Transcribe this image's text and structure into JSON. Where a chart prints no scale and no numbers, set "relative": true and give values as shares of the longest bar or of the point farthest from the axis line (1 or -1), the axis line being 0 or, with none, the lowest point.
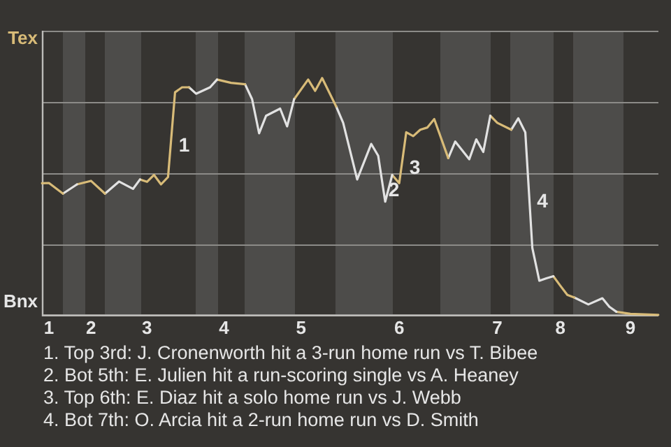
{
  "chart_data": {
    "type": "line",
    "relative": true,
    "categories": [
      null,
      "1",
      null,
      null,
      null,
      null,
      null,
      "2",
      null,
      null,
      null,
      null,
      null,
      null,
      null,
      "3",
      null,
      null,
      null,
      null,
      null,
      null,
      null,
      null,
      null,
      null,
      "4",
      null,
      null,
      null,
      null,
      null,
      null,
      null,
      null,
      null,
      null,
      "5",
      null,
      null,
      null,
      null,
      null,
      null,
      null,
      null,
      null,
      null,
      null,
      null,
      null,
      "6",
      null,
      null,
      null,
      null,
      null,
      null,
      null,
      null,
      null,
      null,
      null,
      null,
      null,
      "7",
      null,
      null,
      null,
      null,
      null,
      null,
      null,
      null,
      "8",
      null,
      null,
      null,
      null,
      null,
      null,
      null,
      null,
      null,
      "9",
      null,
      null,
      null,
      null
    ],
    "series": [
      {
        "color": "#d8bb78",
        "values": [
          0.556,
          0.557,
          null,
          0.512,
          null,
          null,
          null,
          null,
          null,
          null,
          null,
          null,
          null,
          null,
          null,
          null,
          null,
          null,
          null,
          null,
          null,
          null,
          null,
          null,
          null,
          null,
          null,
          null,
          null,
          null,
          null,
          null,
          null,
          null,
          null,
          null,
          null,
          null,
          null,
          null,
          null,
          null,
          null,
          null,
          null,
          null,
          null,
          null,
          null,
          null,
          null,
          null,
          null,
          null,
          null,
          null,
          null,
          null,
          null,
          null,
          null,
          null,
          null,
          null,
          null,
          null,
          null,
          null,
          null,
          null,
          null,
          null,
          null,
          null,
          null,
          null,
          null,
          null,
          null,
          null,
          null,
          null,
          null,
          null,
          null,
          null,
          null,
          null,
          null
        ]
      },
      {
        "color": "#e2e2e2",
        "values": [
          null,
          null,
          null,
          0.512,
          null,
          0.551,
          null,
          null,
          null,
          null,
          null,
          null,
          null,
          null,
          null,
          null,
          null,
          null,
          null,
          null,
          null,
          null,
          null,
          null,
          null,
          null,
          null,
          null,
          null,
          null,
          null,
          null,
          null,
          null,
          null,
          null,
          null,
          null,
          null,
          null,
          null,
          null,
          null,
          null,
          null,
          null,
          null,
          null,
          null,
          null,
          null,
          null,
          null,
          null,
          null,
          null,
          null,
          null,
          null,
          null,
          null,
          null,
          null,
          null,
          null,
          null,
          null,
          null,
          null,
          null,
          null,
          null,
          null,
          null,
          null,
          null,
          null,
          null,
          null,
          null,
          null,
          null,
          null,
          null,
          null,
          null,
          null,
          null,
          null
        ]
      },
      {
        "color": "#d8bb78",
        "values": [
          null,
          null,
          null,
          null,
          null,
          0.551,
          null,
          0.566,
          null,
          0.512,
          null,
          null,
          null,
          null,
          null,
          null,
          null,
          null,
          null,
          null,
          null,
          null,
          null,
          null,
          null,
          null,
          null,
          null,
          null,
          null,
          null,
          null,
          null,
          null,
          null,
          null,
          null,
          null,
          null,
          null,
          null,
          null,
          null,
          null,
          null,
          null,
          null,
          null,
          null,
          null,
          null,
          null,
          null,
          null,
          null,
          null,
          null,
          null,
          null,
          null,
          null,
          null,
          null,
          null,
          null,
          null,
          null,
          null,
          null,
          null,
          null,
          null,
          null,
          null,
          null,
          null,
          null,
          null,
          null,
          null,
          null,
          null,
          null,
          null,
          null,
          null,
          null,
          null,
          null
        ]
      },
      {
        "color": "#e2e2e2",
        "values": [
          null,
          null,
          null,
          null,
          null,
          null,
          null,
          null,
          null,
          0.512,
          null,
          0.563,
          null,
          0.532,
          0.572,
          null,
          null,
          null,
          null,
          null,
          null,
          null,
          null,
          null,
          null,
          null,
          null,
          null,
          null,
          null,
          null,
          null,
          null,
          null,
          null,
          null,
          null,
          null,
          null,
          null,
          null,
          null,
          null,
          null,
          null,
          null,
          null,
          null,
          null,
          null,
          null,
          null,
          null,
          null,
          null,
          null,
          null,
          null,
          null,
          null,
          null,
          null,
          null,
          null,
          null,
          null,
          null,
          null,
          null,
          null,
          null,
          null,
          null,
          null,
          null,
          null,
          null,
          null,
          null,
          null,
          null,
          null,
          null,
          null,
          null,
          null,
          null,
          null,
          null
        ]
      },
      {
        "color": "#d8bb78",
        "values": [
          null,
          null,
          null,
          null,
          null,
          null,
          null,
          null,
          null,
          null,
          null,
          null,
          null,
          null,
          0.572,
          0.562,
          0.591,
          0.551,
          0.582,
          0.94,
          0.961,
          0.961,
          null,
          null,
          null,
          null,
          null,
          null,
          null,
          null,
          null,
          null,
          null,
          null,
          null,
          null,
          null,
          null,
          null,
          null,
          null,
          null,
          null,
          null,
          null,
          null,
          null,
          null,
          null,
          null,
          null,
          null,
          null,
          null,
          null,
          null,
          null,
          null,
          null,
          null,
          null,
          null,
          null,
          null,
          null,
          null,
          null,
          null,
          null,
          null,
          null,
          null,
          null,
          null,
          null,
          null,
          null,
          null,
          null,
          null,
          null,
          null,
          null,
          null,
          null,
          null,
          null,
          null,
          null
        ]
      },
      {
        "color": "#e2e2e2",
        "values": [
          null,
          null,
          null,
          null,
          null,
          null,
          null,
          null,
          null,
          null,
          null,
          null,
          null,
          null,
          null,
          null,
          null,
          null,
          null,
          null,
          null,
          0.961,
          0.934,
          null,
          0.961,
          0.994,
          null,
          null,
          null,
          null,
          null,
          null,
          null,
          null,
          null,
          null,
          null,
          null,
          null,
          null,
          null,
          null,
          null,
          null,
          null,
          null,
          null,
          null,
          null,
          null,
          null,
          null,
          null,
          null,
          null,
          null,
          null,
          null,
          null,
          null,
          null,
          null,
          null,
          null,
          null,
          null,
          null,
          null,
          null,
          null,
          null,
          null,
          null,
          null,
          null,
          null,
          null,
          null,
          null,
          null,
          null,
          null,
          null,
          null,
          null,
          null,
          null,
          null,
          null
        ]
      },
      {
        "color": "#d8bb78",
        "values": [
          null,
          null,
          null,
          null,
          null,
          null,
          null,
          null,
          null,
          null,
          null,
          null,
          null,
          null,
          null,
          null,
          null,
          null,
          null,
          null,
          null,
          null,
          null,
          null,
          null,
          0.994,
          null,
          0.98,
          null,
          0.974,
          null,
          null,
          null,
          null,
          null,
          null,
          null,
          null,
          null,
          null,
          null,
          null,
          null,
          null,
          null,
          null,
          null,
          null,
          null,
          null,
          null,
          null,
          null,
          null,
          null,
          null,
          null,
          null,
          null,
          null,
          null,
          null,
          null,
          null,
          null,
          null,
          null,
          null,
          null,
          null,
          null,
          null,
          null,
          null,
          null,
          null,
          null,
          null,
          null,
          null,
          null,
          null,
          null,
          null,
          null,
          null,
          null,
          null,
          null
        ]
      },
      {
        "color": "#e2e2e2",
        "values": [
          null,
          null,
          null,
          null,
          null,
          null,
          null,
          null,
          null,
          null,
          null,
          null,
          null,
          null,
          null,
          null,
          null,
          null,
          null,
          null,
          null,
          null,
          null,
          null,
          null,
          null,
          null,
          null,
          null,
          0.974,
          0.911,
          0.767,
          0.841,
          null,
          0.871,
          0.796,
          0.911,
          null,
          null,
          null,
          null,
          null,
          null,
          null,
          null,
          null,
          null,
          null,
          null,
          null,
          null,
          null,
          null,
          null,
          null,
          null,
          null,
          null,
          null,
          null,
          null,
          null,
          null,
          null,
          null,
          null,
          null,
          null,
          null,
          null,
          null,
          null,
          null,
          null,
          null,
          null,
          null,
          null,
          null,
          null,
          null,
          null,
          null,
          null,
          null,
          null,
          null,
          null,
          null
        ]
      },
      {
        "color": "#d8bb78",
        "values": [
          null,
          null,
          null,
          null,
          null,
          null,
          null,
          null,
          null,
          null,
          null,
          null,
          null,
          null,
          null,
          null,
          null,
          null,
          null,
          null,
          null,
          null,
          null,
          null,
          null,
          null,
          null,
          null,
          null,
          null,
          null,
          null,
          null,
          null,
          null,
          null,
          0.911,
          null,
          0.994,
          0.946,
          1,
          null,
          0.88,
          null,
          null,
          null,
          null,
          null,
          null,
          null,
          null,
          null,
          null,
          null,
          null,
          null,
          null,
          null,
          null,
          null,
          null,
          null,
          null,
          null,
          null,
          null,
          null,
          null,
          null,
          null,
          null,
          null,
          null,
          null,
          null,
          null,
          null,
          null,
          null,
          null,
          null,
          null,
          null,
          null,
          null,
          null,
          null,
          null,
          null
        ]
      },
      {
        "color": "#e2e2e2",
        "values": [
          null,
          null,
          null,
          null,
          null,
          null,
          null,
          null,
          null,
          null,
          null,
          null,
          null,
          null,
          null,
          null,
          null,
          null,
          null,
          null,
          null,
          null,
          null,
          null,
          null,
          null,
          null,
          null,
          null,
          null,
          null,
          null,
          null,
          null,
          null,
          null,
          null,
          null,
          null,
          null,
          null,
          null,
          0.88,
          0.811,
          null,
          0.572,
          null,
          0.722,
          0.672,
          0.478,
          0.591,
          null,
          null,
          null,
          null,
          null,
          null,
          null,
          null,
          null,
          null,
          null,
          null,
          null,
          null,
          null,
          null,
          null,
          null,
          null,
          null,
          null,
          null,
          null,
          null,
          null,
          null,
          null,
          null,
          null,
          null,
          null,
          null,
          null,
          null,
          null,
          null,
          null,
          null
        ]
      },
      {
        "color": "#d8bb78",
        "values": [
          null,
          null,
          null,
          null,
          null,
          null,
          null,
          null,
          null,
          null,
          null,
          null,
          null,
          null,
          null,
          null,
          null,
          null,
          null,
          null,
          null,
          null,
          null,
          null,
          null,
          null,
          null,
          null,
          null,
          null,
          null,
          null,
          null,
          null,
          null,
          null,
          null,
          null,
          null,
          null,
          null,
          null,
          null,
          null,
          null,
          null,
          null,
          null,
          null,
          null,
          0.591,
          0.556,
          0.771,
          0.755,
          0.782,
          0.791,
          0.827,
          null,
          0.662,
          null,
          null,
          null,
          null,
          null,
          null,
          null,
          null,
          null,
          null,
          null,
          null,
          null,
          null,
          null,
          null,
          null,
          null,
          null,
          null,
          null,
          null,
          null,
          null,
          null,
          null,
          null,
          null,
          null,
          null
        ]
      },
      {
        "color": "#e2e2e2",
        "values": [
          null,
          null,
          null,
          null,
          null,
          null,
          null,
          null,
          null,
          null,
          null,
          null,
          null,
          null,
          null,
          null,
          null,
          null,
          null,
          null,
          null,
          null,
          null,
          null,
          null,
          null,
          null,
          null,
          null,
          null,
          null,
          null,
          null,
          null,
          null,
          null,
          null,
          null,
          null,
          null,
          null,
          null,
          null,
          null,
          null,
          null,
          null,
          null,
          null,
          null,
          null,
          null,
          null,
          null,
          null,
          null,
          null,
          null,
          0.662,
          0.732,
          null,
          0.657,
          0.741,
          0.688,
          0.841,
          null,
          null,
          null,
          null,
          null,
          null,
          null,
          null,
          null,
          null,
          null,
          null,
          null,
          null,
          null,
          null,
          null,
          null,
          null,
          null,
          null,
          null,
          null,
          null
        ]
      },
      {
        "color": "#d8bb78",
        "values": [
          null,
          null,
          null,
          null,
          null,
          null,
          null,
          null,
          null,
          null,
          null,
          null,
          null,
          null,
          null,
          null,
          null,
          null,
          null,
          null,
          null,
          null,
          null,
          null,
          null,
          null,
          null,
          null,
          null,
          null,
          null,
          null,
          null,
          null,
          null,
          null,
          null,
          null,
          null,
          null,
          null,
          null,
          null,
          null,
          null,
          null,
          null,
          null,
          null,
          null,
          null,
          null,
          null,
          null,
          null,
          null,
          null,
          null,
          null,
          null,
          null,
          null,
          null,
          null,
          0.841,
          0.811,
          null,
          0.782,
          null,
          null,
          null,
          null,
          null,
          null,
          null,
          null,
          null,
          null,
          null,
          null,
          null,
          null,
          null,
          null,
          null,
          null,
          null,
          null,
          null
        ]
      },
      {
        "color": "#e2e2e2",
        "values": [
          null,
          null,
          null,
          null,
          null,
          null,
          null,
          null,
          null,
          null,
          null,
          null,
          null,
          null,
          null,
          null,
          null,
          null,
          null,
          null,
          null,
          null,
          null,
          null,
          null,
          null,
          null,
          null,
          null,
          null,
          null,
          null,
          null,
          null,
          null,
          null,
          null,
          null,
          null,
          null,
          null,
          null,
          null,
          null,
          null,
          null,
          null,
          null,
          null,
          null,
          null,
          null,
          null,
          null,
          null,
          null,
          null,
          null,
          null,
          null,
          null,
          null,
          null,
          null,
          null,
          null,
          null,
          0.782,
          0.83,
          0.771,
          0.283,
          0.144,
          0.154,
          0.163,
          null,
          null,
          null,
          null,
          null,
          null,
          null,
          null,
          null,
          null,
          null,
          null,
          null,
          null,
          null
        ]
      },
      {
        "color": "#d8bb78",
        "values": [
          null,
          null,
          null,
          null,
          null,
          null,
          null,
          null,
          null,
          null,
          null,
          null,
          null,
          null,
          null,
          null,
          null,
          null,
          null,
          null,
          null,
          null,
          null,
          null,
          null,
          null,
          null,
          null,
          null,
          null,
          null,
          null,
          null,
          null,
          null,
          null,
          null,
          null,
          null,
          null,
          null,
          null,
          null,
          null,
          null,
          null,
          null,
          null,
          null,
          null,
          null,
          null,
          null,
          null,
          null,
          null,
          null,
          null,
          null,
          null,
          null,
          null,
          null,
          null,
          null,
          null,
          null,
          null,
          null,
          null,
          null,
          null,
          null,
          0.163,
          0.123,
          0.084,
          0.073,
          null,
          null,
          null,
          null,
          null,
          null,
          null,
          null,
          null,
          null,
          null,
          null
        ]
      },
      {
        "color": "#e2e2e2",
        "values": [
          null,
          null,
          null,
          null,
          null,
          null,
          null,
          null,
          null,
          null,
          null,
          null,
          null,
          null,
          null,
          null,
          null,
          null,
          null,
          null,
          null,
          null,
          null,
          null,
          null,
          null,
          null,
          null,
          null,
          null,
          null,
          null,
          null,
          null,
          null,
          null,
          null,
          null,
          null,
          null,
          null,
          null,
          null,
          null,
          null,
          null,
          null,
          null,
          null,
          null,
          null,
          null,
          null,
          null,
          null,
          null,
          null,
          null,
          null,
          null,
          null,
          null,
          null,
          null,
          null,
          null,
          null,
          null,
          null,
          null,
          null,
          null,
          null,
          null,
          null,
          null,
          0.073,
          null,
          0.044,
          null,
          0.07,
          0.034,
          0.013,
          null,
          null,
          null,
          null,
          null,
          null
        ]
      },
      {
        "color": "#d8bb78",
        "values": [
          null,
          null,
          null,
          null,
          null,
          null,
          null,
          null,
          null,
          null,
          null,
          null,
          null,
          null,
          null,
          null,
          null,
          null,
          null,
          null,
          null,
          null,
          null,
          null,
          null,
          null,
          null,
          null,
          null,
          null,
          null,
          null,
          null,
          null,
          null,
          null,
          null,
          null,
          null,
          null,
          null,
          null,
          null,
          null,
          null,
          null,
          null,
          null,
          null,
          null,
          null,
          null,
          null,
          null,
          null,
          null,
          null,
          null,
          null,
          null,
          null,
          null,
          null,
          null,
          null,
          null,
          null,
          null,
          null,
          null,
          null,
          null,
          null,
          null,
          null,
          null,
          null,
          null,
          null,
          null,
          null,
          null,
          0.013,
          null,
          0.004,
          null,
          null,
          null,
          0
        ]
      }
    ],
    "grid": "y",
    "legend": false,
    "annotations": [
      "Tex",
      "Bnx",
      "1",
      "2",
      "3",
      "4",
      "1. Top 3rd: J. Cronenworth hit a 3-run home run vs T. Bibee",
      "2. Bot 5th: E. Julien hit a run-scoring single vs A. Heaney",
      "3. Top 6th: E. Diaz hit a solo home run vs J. Webb",
      "4. Bot 7th: O. Arcia hit a 2-run home run vs D. Smith"
    ]
  }
}
